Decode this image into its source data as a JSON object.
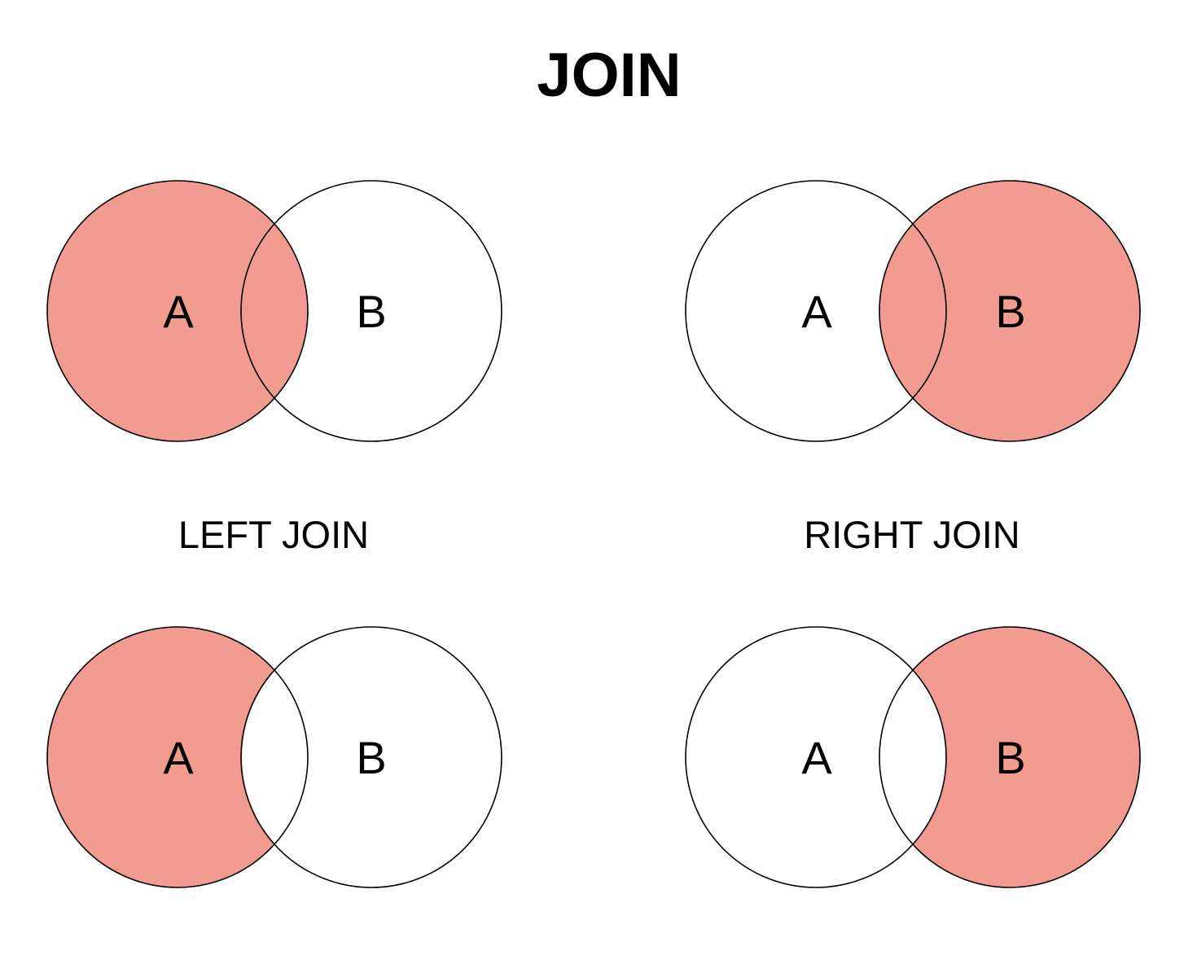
{
  "title": "JOIN",
  "colors": {
    "highlight": "#f19b91",
    "outline": "#000000",
    "background": "#ffffff"
  },
  "diagrams": [
    {
      "id": "top-left",
      "left_label": "A",
      "right_label": "B",
      "shaded": [
        "left_only",
        "intersection"
      ]
    },
    {
      "id": "top-right",
      "left_label": "A",
      "right_label": "B",
      "shaded": [
        "intersection",
        "right_only"
      ]
    },
    {
      "id": "bottom-left",
      "left_label": "A",
      "right_label": "B",
      "shaded": [
        "left_only"
      ]
    },
    {
      "id": "bottom-right",
      "left_label": "A",
      "right_label": "B",
      "shaded": [
        "right_only"
      ]
    }
  ],
  "captions": {
    "left": "LEFT JOIN",
    "right": "RIGHT JOIN"
  }
}
